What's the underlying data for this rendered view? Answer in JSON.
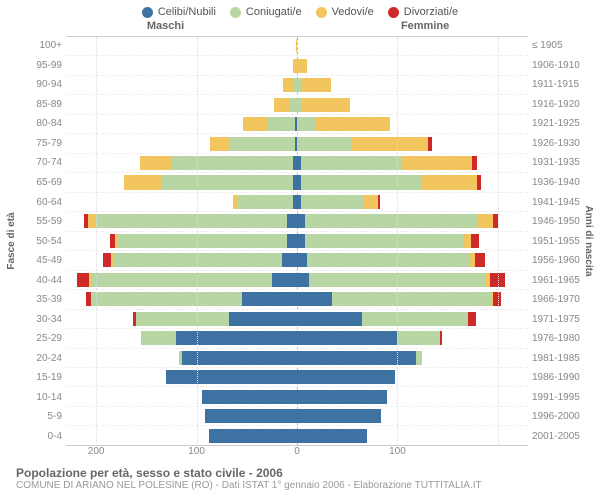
{
  "legend": [
    {
      "label": "Celibi/Nubili",
      "color": "#3e72a3"
    },
    {
      "label": "Coniugati/e",
      "color": "#b8d6a4"
    },
    {
      "label": "Vedovi/e",
      "color": "#f3c55e"
    },
    {
      "label": "Divorziati/e",
      "color": "#cf2a2a"
    }
  ],
  "headers": {
    "male": "Maschi",
    "female": "Femmine"
  },
  "axis_left_title": "Fasce di età",
  "axis_right_title": "Anni di nascita",
  "x_ticks": [
    200,
    100,
    0,
    100
  ],
  "x_max": 230,
  "age_labels": [
    "100+",
    "95-99",
    "90-94",
    "85-89",
    "80-84",
    "75-79",
    "70-74",
    "65-69",
    "60-64",
    "55-59",
    "50-54",
    "45-49",
    "40-44",
    "35-39",
    "30-34",
    "25-29",
    "20-24",
    "15-19",
    "10-14",
    "5-9",
    "0-4"
  ],
  "year_labels": [
    "≤ 1905",
    "1906-1910",
    "1911-1915",
    "1916-1920",
    "1921-1925",
    "1926-1930",
    "1931-1935",
    "1936-1940",
    "1941-1945",
    "1946-1950",
    "1951-1955",
    "1956-1960",
    "1961-1965",
    "1966-1970",
    "1971-1975",
    "1976-1980",
    "1981-1985",
    "1986-1990",
    "1991-1995",
    "1996-2000",
    "2001-2005"
  ],
  "rows": [
    {
      "m": [
        0,
        0,
        1,
        0
      ],
      "f": [
        0,
        0,
        0,
        0
      ]
    },
    {
      "m": [
        0,
        0,
        4,
        0
      ],
      "f": [
        0,
        0,
        10,
        0
      ]
    },
    {
      "m": [
        0,
        4,
        10,
        0
      ],
      "f": [
        0,
        4,
        30,
        0
      ]
    },
    {
      "m": [
        0,
        8,
        15,
        0
      ],
      "f": [
        0,
        5,
        48,
        0
      ]
    },
    {
      "m": [
        2,
        28,
        24,
        0
      ],
      "f": [
        0,
        18,
        75,
        0
      ]
    },
    {
      "m": [
        2,
        65,
        20,
        0
      ],
      "f": [
        0,
        55,
        75,
        4
      ]
    },
    {
      "m": [
        4,
        120,
        32,
        0
      ],
      "f": [
        4,
        100,
        70,
        5
      ]
    },
    {
      "m": [
        4,
        130,
        38,
        0
      ],
      "f": [
        4,
        120,
        55,
        4
      ]
    },
    {
      "m": [
        4,
        55,
        5,
        0
      ],
      "f": [
        4,
        62,
        15,
        2
      ]
    },
    {
      "m": [
        10,
        190,
        8,
        4
      ],
      "f": [
        8,
        172,
        15,
        5
      ]
    },
    {
      "m": [
        10,
        168,
        3,
        5
      ],
      "f": [
        8,
        157,
        8,
        8
      ]
    },
    {
      "m": [
        15,
        168,
        2,
        8
      ],
      "f": [
        10,
        162,
        5,
        10
      ]
    },
    {
      "m": [
        25,
        180,
        2,
        12
      ],
      "f": [
        12,
        176,
        4,
        15
      ]
    },
    {
      "m": [
        55,
        150,
        0,
        5
      ],
      "f": [
        35,
        158,
        2,
        8
      ]
    },
    {
      "m": [
        68,
        92,
        0,
        3
      ],
      "f": [
        65,
        105,
        0,
        8
      ]
    },
    {
      "m": [
        120,
        35,
        0,
        0
      ],
      "f": [
        100,
        42,
        0,
        2
      ]
    },
    {
      "m": [
        115,
        3,
        0,
        0
      ],
      "f": [
        118,
        6,
        0,
        0
      ]
    },
    {
      "m": [
        130,
        0,
        0,
        0
      ],
      "f": [
        98,
        0,
        0,
        0
      ]
    },
    {
      "m": [
        95,
        0,
        0,
        0
      ],
      "f": [
        90,
        0,
        0,
        0
      ]
    },
    {
      "m": [
        92,
        0,
        0,
        0
      ],
      "f": [
        84,
        0,
        0,
        0
      ]
    },
    {
      "m": [
        88,
        0,
        0,
        0
      ],
      "f": [
        70,
        0,
        0,
        0
      ]
    }
  ],
  "caption": "Popolazione per età, sesso e stato civile - 2006",
  "subcaption": "COMUNE DI ARIANO NEL POLESINE (RO) - Dati ISTAT 1° gennaio 2006 - Elaborazione TUTTITALIA.IT"
}
